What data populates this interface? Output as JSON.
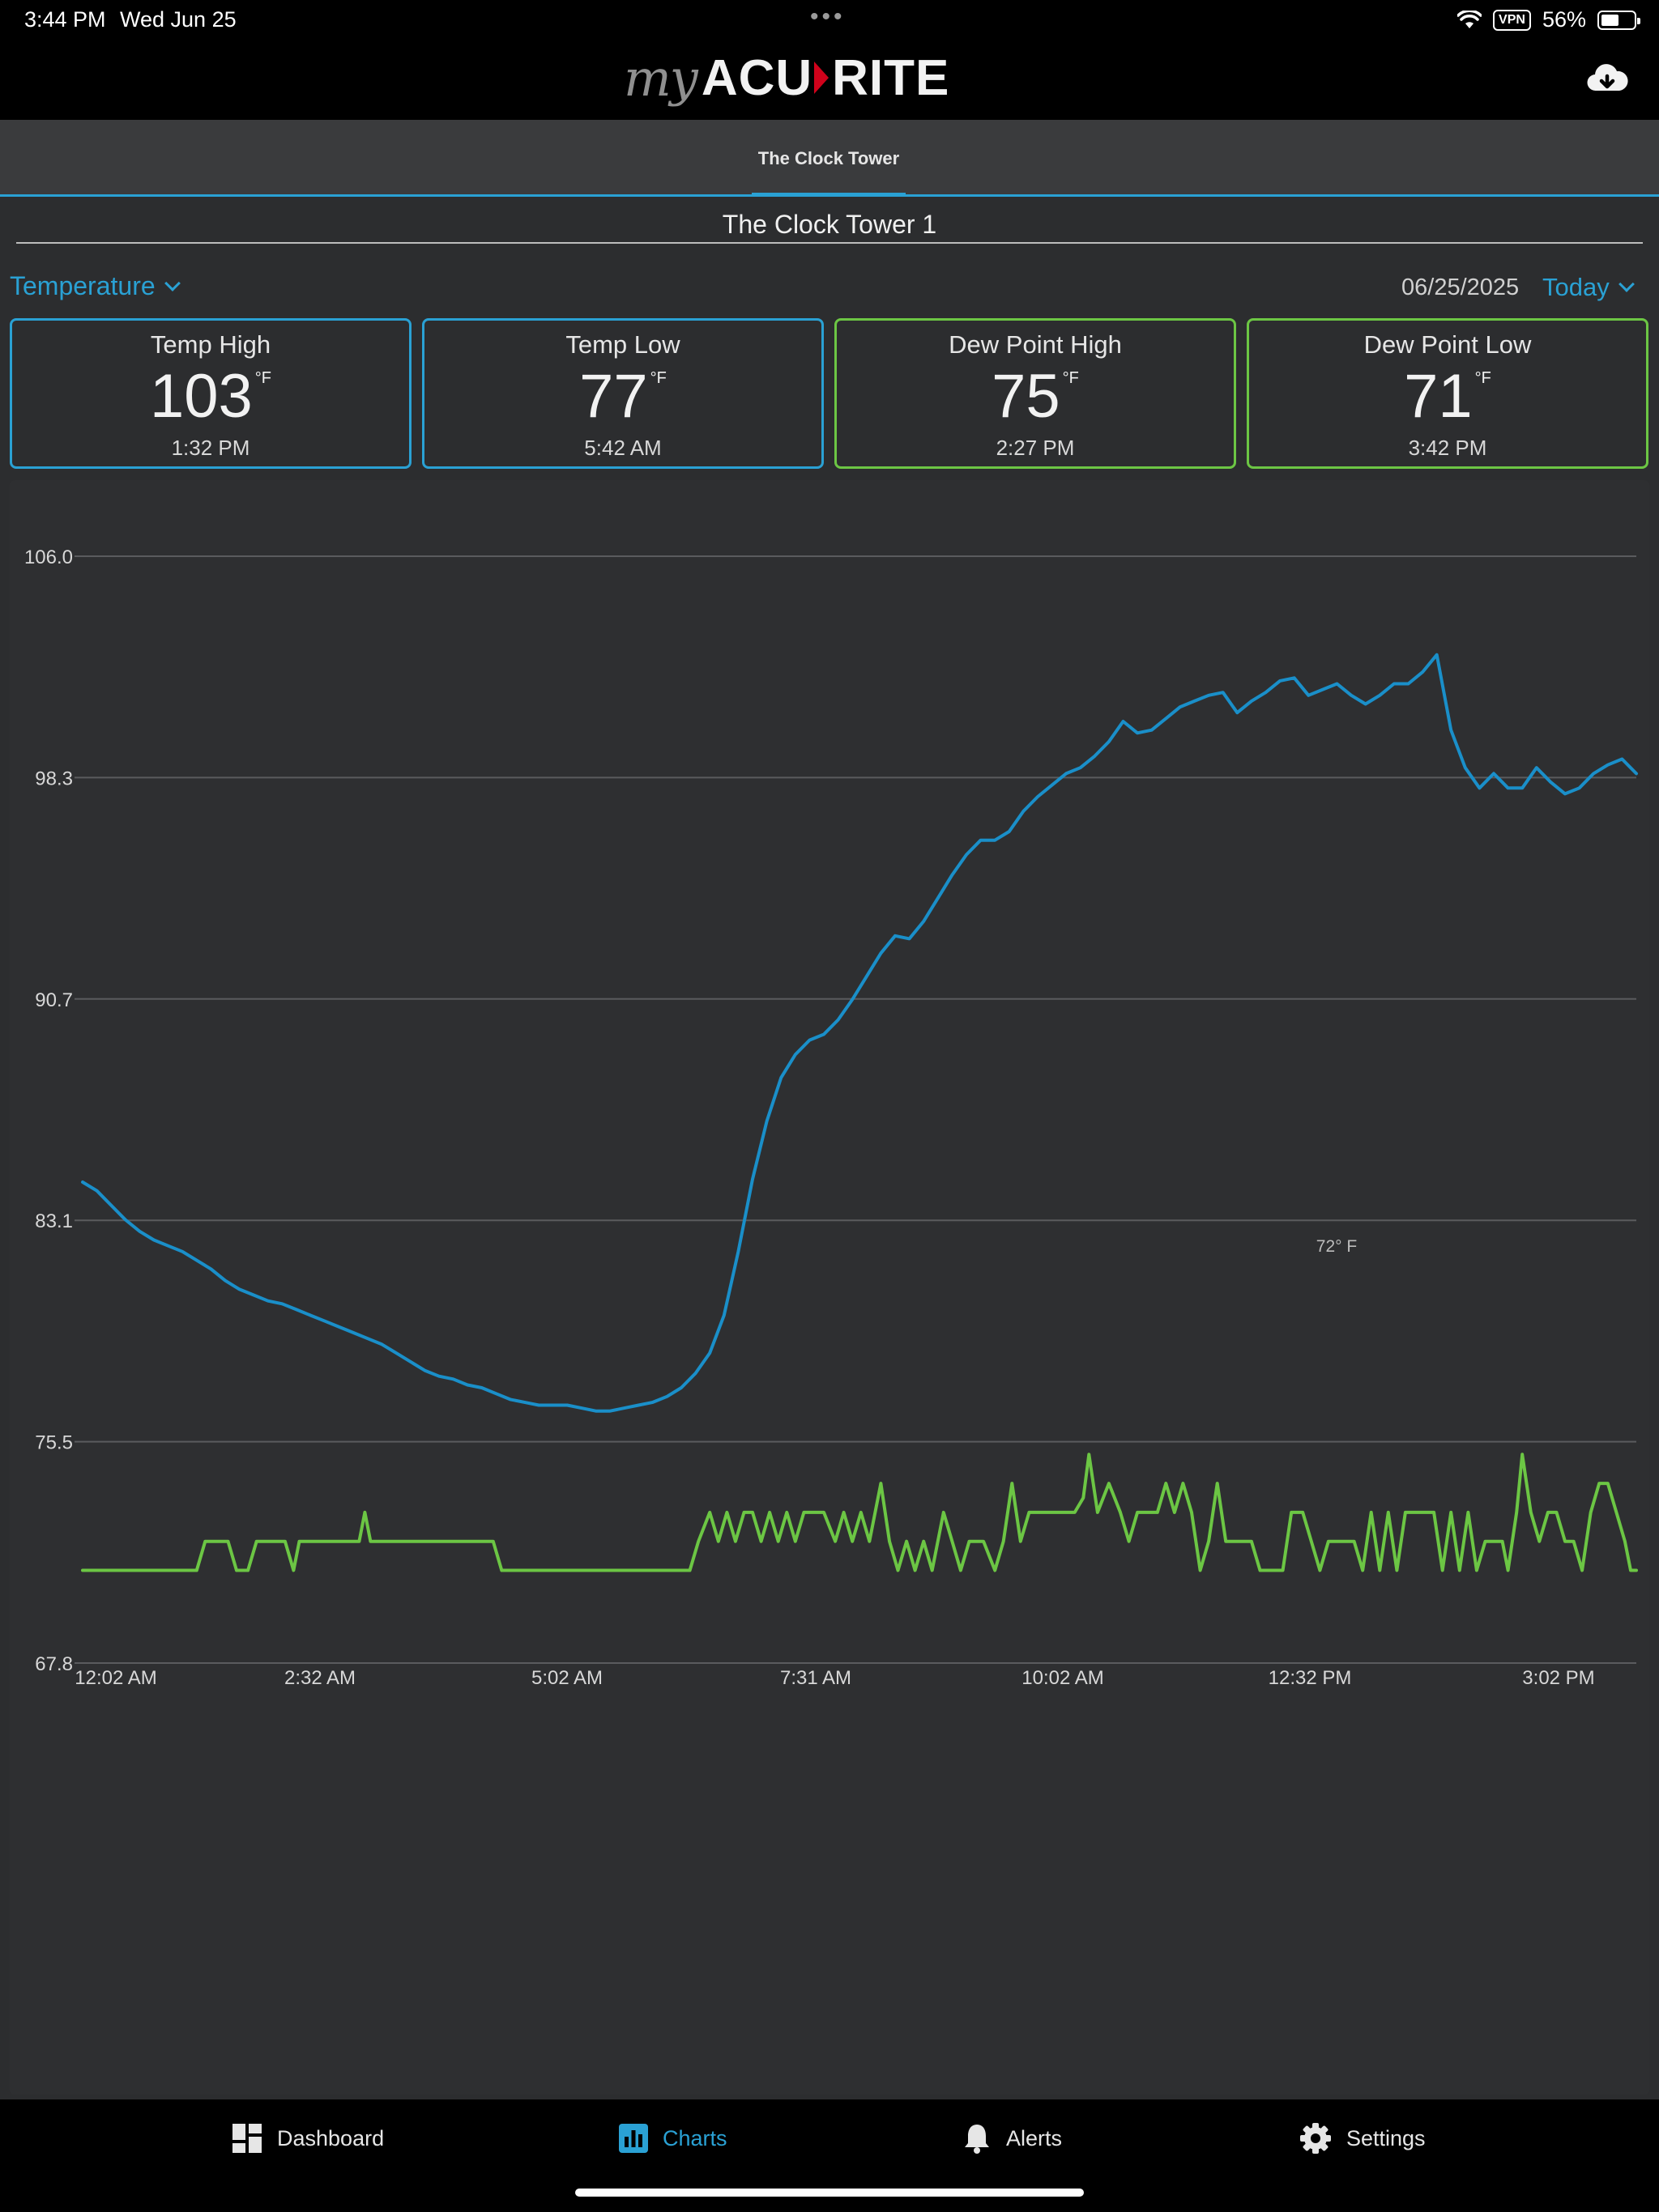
{
  "status_bar": {
    "time": "3:44 PM",
    "date": "Wed Jun 25",
    "vpn": "VPN",
    "battery": "56%",
    "battery_level": 0.56
  },
  "header": {
    "logo_my": "my",
    "logo_acu": "ACU",
    "logo_rite": "RITE",
    "download_icon": "cloud-download-icon"
  },
  "tabs": [
    {
      "label": "The Clock Tower",
      "active": true
    }
  ],
  "station_title": "The Clock Tower 1",
  "metric_select": "Temperature",
  "date": "06/25/2025",
  "range_select": "Today",
  "cards": [
    {
      "title": "Temp High",
      "value": "103",
      "unit": "°F",
      "time": "1:32 PM",
      "color": "#2aa1d4"
    },
    {
      "title": "Temp Low",
      "value": "77",
      "unit": "°F",
      "time": "5:42 AM",
      "color": "#2aa1d4"
    },
    {
      "title": "Dew Point High",
      "value": "75",
      "unit": "°F",
      "time": "2:27 PM",
      "color": "#6cc644"
    },
    {
      "title": "Dew Point Low",
      "value": "71",
      "unit": "°F",
      "time": "3:42 PM",
      "color": "#6cc644"
    }
  ],
  "chart_data": {
    "type": "line",
    "ylim": [
      67.8,
      106.0
    ],
    "yticks": [
      "106.0",
      "98.3",
      "90.7",
      "83.1",
      "75.5",
      "67.8"
    ],
    "xticks": [
      "12:02 AM",
      "2:32 AM",
      "5:02 AM",
      "7:31 AM",
      "10:02 AM",
      "12:32 PM",
      "3:02 PM"
    ],
    "grid": true,
    "annotation": "72° F",
    "series": [
      {
        "name": "Temperature",
        "color": "#1a8fc9",
        "points": [
          [
            0,
            84.4
          ],
          [
            10,
            84.1
          ],
          [
            20,
            83.6
          ],
          [
            30,
            83.1
          ],
          [
            40,
            82.7
          ],
          [
            50,
            82.4
          ],
          [
            60,
            82.2
          ],
          [
            70,
            82.0
          ],
          [
            80,
            81.7
          ],
          [
            90,
            81.4
          ],
          [
            100,
            81.0
          ],
          [
            110,
            80.7
          ],
          [
            120,
            80.5
          ],
          [
            130,
            80.3
          ],
          [
            140,
            80.2
          ],
          [
            150,
            80.0
          ],
          [
            160,
            79.8
          ],
          [
            170,
            79.6
          ],
          [
            180,
            79.4
          ],
          [
            190,
            79.2
          ],
          [
            200,
            79.0
          ],
          [
            210,
            78.8
          ],
          [
            220,
            78.5
          ],
          [
            230,
            78.2
          ],
          [
            240,
            77.9
          ],
          [
            250,
            77.7
          ],
          [
            260,
            77.6
          ],
          [
            270,
            77.4
          ],
          [
            280,
            77.3
          ],
          [
            290,
            77.1
          ],
          [
            300,
            76.9
          ],
          [
            310,
            76.8
          ],
          [
            320,
            76.7
          ],
          [
            330,
            76.7
          ],
          [
            340,
            76.7
          ],
          [
            350,
            76.6
          ],
          [
            360,
            76.5
          ],
          [
            370,
            76.5
          ],
          [
            380,
            76.6
          ],
          [
            390,
            76.7
          ],
          [
            400,
            76.8
          ],
          [
            410,
            77.0
          ],
          [
            420,
            77.3
          ],
          [
            430,
            77.8
          ],
          [
            440,
            78.5
          ],
          [
            450,
            79.8
          ],
          [
            460,
            82.0
          ],
          [
            470,
            84.5
          ],
          [
            480,
            86.5
          ],
          [
            490,
            88.0
          ],
          [
            500,
            88.8
          ],
          [
            510,
            89.3
          ],
          [
            520,
            89.5
          ],
          [
            530,
            90.0
          ],
          [
            540,
            90.7
          ],
          [
            550,
            91.5
          ],
          [
            560,
            92.3
          ],
          [
            570,
            92.9
          ],
          [
            580,
            92.8
          ],
          [
            590,
            93.4
          ],
          [
            600,
            94.2
          ],
          [
            610,
            95.0
          ],
          [
            620,
            95.7
          ],
          [
            630,
            96.2
          ],
          [
            640,
            96.2
          ],
          [
            650,
            96.5
          ],
          [
            660,
            97.2
          ],
          [
            670,
            97.7
          ],
          [
            680,
            98.1
          ],
          [
            690,
            98.5
          ],
          [
            700,
            98.7
          ],
          [
            710,
            99.1
          ],
          [
            720,
            99.6
          ],
          [
            730,
            100.3
          ],
          [
            740,
            99.9
          ],
          [
            750,
            100.0
          ],
          [
            760,
            100.4
          ],
          [
            770,
            100.8
          ],
          [
            780,
            101.0
          ],
          [
            790,
            101.2
          ],
          [
            800,
            101.3
          ],
          [
            810,
            100.6
          ],
          [
            820,
            101.0
          ],
          [
            830,
            101.3
          ],
          [
            840,
            101.7
          ],
          [
            850,
            101.8
          ],
          [
            860,
            101.2
          ],
          [
            870,
            101.4
          ],
          [
            880,
            101.6
          ],
          [
            890,
            101.2
          ],
          [
            900,
            100.9
          ],
          [
            910,
            101.2
          ],
          [
            920,
            101.6
          ],
          [
            930,
            101.6
          ],
          [
            940,
            102.0
          ],
          [
            950,
            102.6
          ],
          [
            960,
            100.0
          ],
          [
            970,
            98.7
          ],
          [
            980,
            98.0
          ],
          [
            990,
            98.5
          ],
          [
            1000,
            98.0
          ],
          [
            1010,
            98.0
          ],
          [
            1020,
            98.7
          ],
          [
            1030,
            98.2
          ],
          [
            1040,
            97.8
          ],
          [
            1050,
            98.0
          ],
          [
            1060,
            98.5
          ],
          [
            1070,
            98.8
          ],
          [
            1080,
            99.0
          ],
          [
            1090,
            98.5
          ]
        ]
      },
      {
        "name": "Dew Point",
        "color": "#6cc644",
        "points": [
          [
            0,
            71.0
          ],
          [
            80,
            71.0
          ],
          [
            86,
            72.0
          ],
          [
            102,
            72.0
          ],
          [
            108,
            71.0
          ],
          [
            116,
            71.0
          ],
          [
            122,
            72.0
          ],
          [
            142,
            72.0
          ],
          [
            148,
            71.0
          ],
          [
            152,
            72.0
          ],
          [
            194,
            72.0
          ],
          [
            198,
            73.0
          ],
          [
            202,
            72.0
          ],
          [
            288,
            72.0
          ],
          [
            294,
            71.0
          ],
          [
            426,
            71.0
          ],
          [
            432,
            72.0
          ],
          [
            440,
            73.0
          ],
          [
            446,
            72.0
          ],
          [
            452,
            73.0
          ],
          [
            458,
            72.0
          ],
          [
            464,
            73.0
          ],
          [
            470,
            73.0
          ],
          [
            476,
            72.0
          ],
          [
            482,
            73.0
          ],
          [
            488,
            72.0
          ],
          [
            494,
            73.0
          ],
          [
            500,
            72.0
          ],
          [
            506,
            73.0
          ],
          [
            520,
            73.0
          ],
          [
            528,
            72.0
          ],
          [
            534,
            73.0
          ],
          [
            540,
            72.0
          ],
          [
            546,
            73.0
          ],
          [
            552,
            72.0
          ],
          [
            560,
            74.0
          ],
          [
            566,
            72.0
          ],
          [
            572,
            71.0
          ],
          [
            578,
            72.0
          ],
          [
            584,
            71.0
          ],
          [
            590,
            72.0
          ],
          [
            596,
            71.0
          ],
          [
            604,
            73.0
          ],
          [
            610,
            72.0
          ],
          [
            616,
            71.0
          ],
          [
            622,
            72.0
          ],
          [
            632,
            72.0
          ],
          [
            640,
            71.0
          ],
          [
            646,
            72.0
          ],
          [
            652,
            74.0
          ],
          [
            658,
            72.0
          ],
          [
            664,
            73.0
          ],
          [
            696,
            73.0
          ],
          [
            702,
            73.5
          ],
          [
            706,
            75.0
          ],
          [
            712,
            73.0
          ],
          [
            720,
            74.0
          ],
          [
            728,
            73.0
          ],
          [
            734,
            72.0
          ],
          [
            740,
            73.0
          ],
          [
            754,
            73.0
          ],
          [
            760,
            74.0
          ],
          [
            766,
            73.0
          ],
          [
            772,
            74.0
          ],
          [
            778,
            73.0
          ],
          [
            784,
            71.0
          ],
          [
            790,
            72.0
          ],
          [
            796,
            74.0
          ],
          [
            802,
            72.0
          ],
          [
            820,
            72.0
          ],
          [
            826,
            71.0
          ],
          [
            842,
            71.0
          ],
          [
            848,
            73.0
          ],
          [
            856,
            73.0
          ],
          [
            862,
            72.0
          ],
          [
            868,
            71.0
          ],
          [
            874,
            72.0
          ],
          [
            892,
            72.0
          ],
          [
            898,
            71.0
          ],
          [
            904,
            73.0
          ],
          [
            910,
            71.0
          ],
          [
            916,
            73.0
          ],
          [
            922,
            71.0
          ],
          [
            928,
            73.0
          ],
          [
            948,
            73.0
          ],
          [
            954,
            71.0
          ],
          [
            960,
            73.0
          ],
          [
            966,
            71.0
          ],
          [
            972,
            73.0
          ],
          [
            978,
            71.0
          ],
          [
            984,
            72.0
          ],
          [
            996,
            72.0
          ],
          [
            1000,
            71.0
          ],
          [
            1006,
            73.0
          ],
          [
            1010,
            75.0
          ],
          [
            1016,
            73.0
          ],
          [
            1022,
            72.0
          ],
          [
            1028,
            73.0
          ],
          [
            1034,
            73.0
          ],
          [
            1040,
            72.0
          ],
          [
            1046,
            72.0
          ],
          [
            1052,
            71.0
          ],
          [
            1058,
            73.0
          ],
          [
            1064,
            74.0
          ],
          [
            1070,
            74.0
          ],
          [
            1076,
            73.0
          ],
          [
            1082,
            72.0
          ],
          [
            1086,
            71.0
          ],
          [
            1090,
            71.0
          ]
        ]
      }
    ]
  },
  "bottom_nav": [
    {
      "label": "Dashboard",
      "icon": "dashboard-icon",
      "active": false
    },
    {
      "label": "Charts",
      "icon": "bar-chart-icon",
      "active": true
    },
    {
      "label": "Alerts",
      "icon": "bell-icon",
      "active": false
    },
    {
      "label": "Settings",
      "icon": "gear-icon",
      "active": false
    }
  ]
}
